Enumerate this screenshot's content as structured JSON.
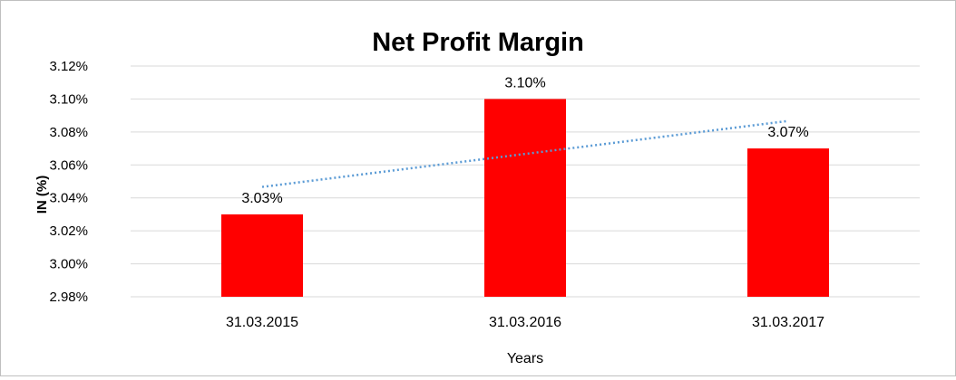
{
  "chart_data": {
    "type": "bar",
    "title": "Net Profit Margin",
    "xlabel": "Years",
    "ylabel": "IN (%)",
    "categories": [
      "31.03.2015",
      "31.03.2016",
      "31.03.2017"
    ],
    "values": [
      3.03,
      3.1,
      3.07
    ],
    "data_labels": [
      "3.03%",
      "3.10%",
      "3.07%"
    ],
    "ylim": [
      2.98,
      3.12
    ],
    "yticks": [
      "2.98%",
      "3.00%",
      "3.02%",
      "3.04%",
      "3.06%",
      "3.08%",
      "3.10%",
      "3.12%"
    ],
    "grid": true,
    "legend": "none",
    "trendline": {
      "type": "linear",
      "style": "dotted"
    },
    "colors": {
      "bar": "#ff0000",
      "trendline": "#5b9bd5",
      "grid": "#d9d9d9",
      "text": "#000000"
    }
  }
}
